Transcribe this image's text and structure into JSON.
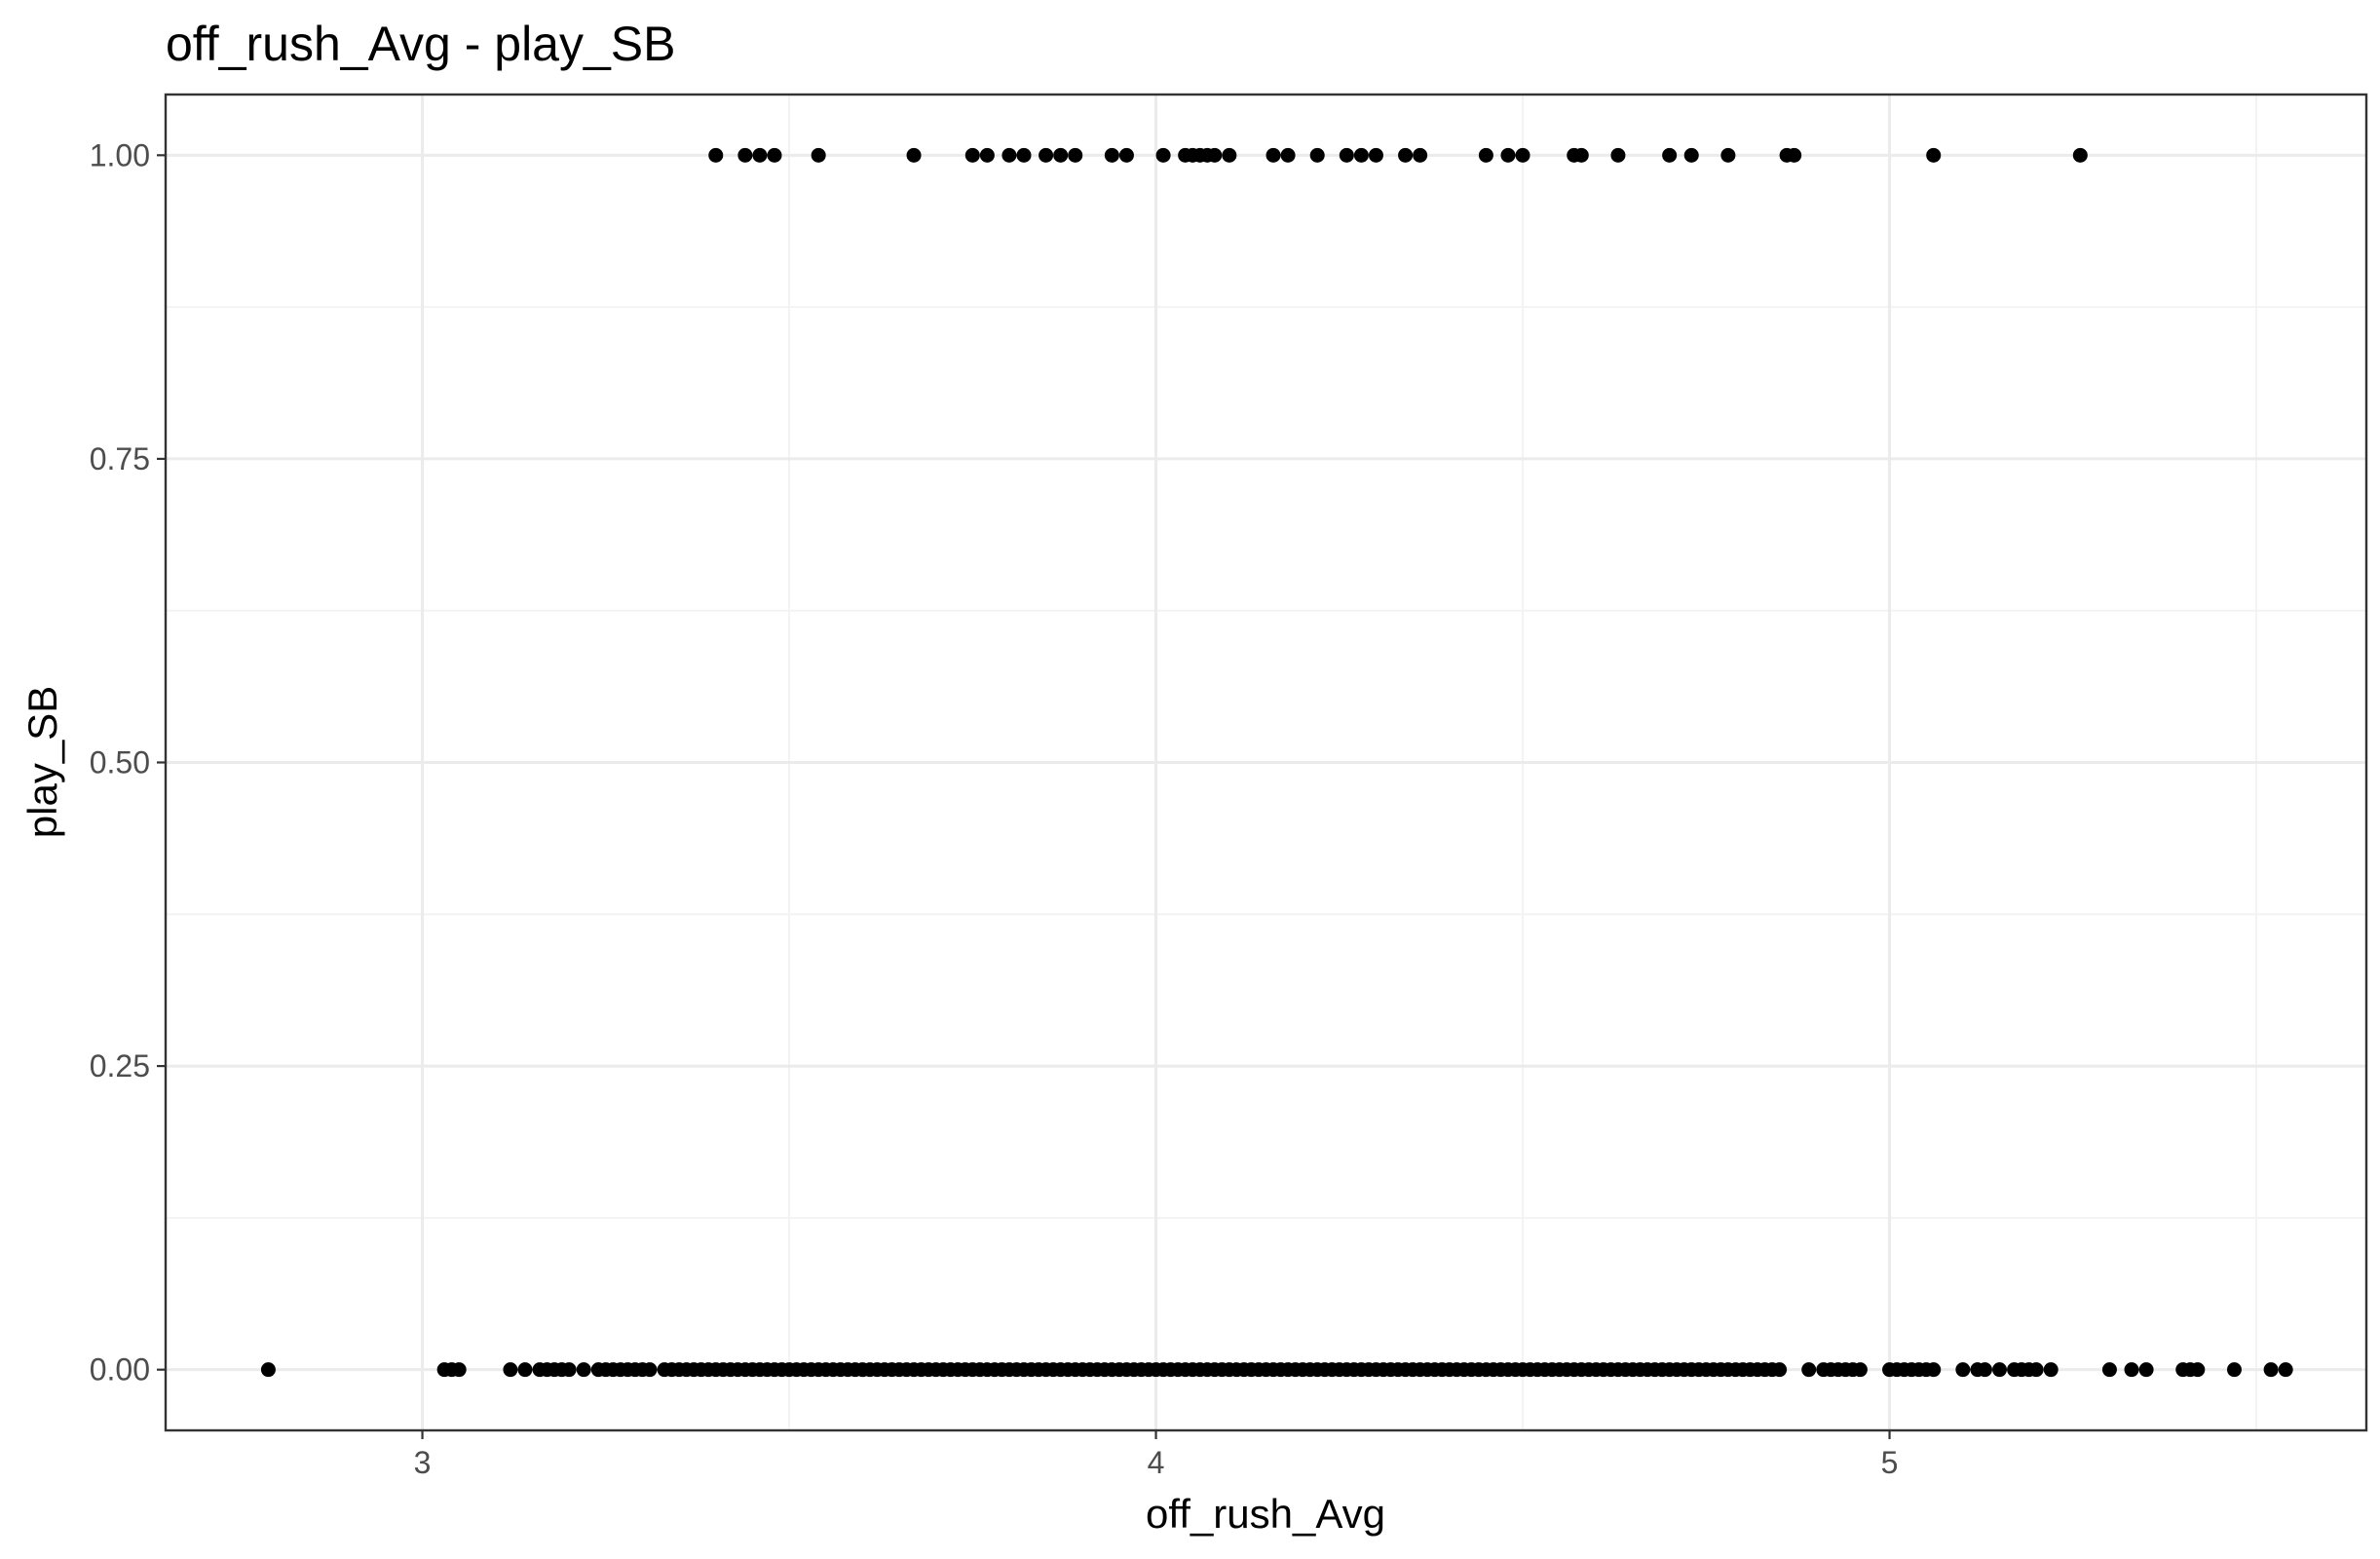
{
  "chart_data": {
    "type": "scatter",
    "title": "off_rush_Avg - play_SB",
    "xlabel": "off_rush_Avg",
    "ylabel": "play_SB",
    "xlim": [
      2.65,
      5.65
    ],
    "ylim": [
      -0.05,
      1.05
    ],
    "xticks": [
      3,
      4,
      5
    ],
    "xtick_labels": [
      "3",
      "4",
      "5"
    ],
    "yticks": [
      0,
      0.25,
      0.5,
      0.75,
      1
    ],
    "ytick_labels": [
      "0.00",
      "0.25",
      "0.50",
      "0.75",
      "1.00"
    ],
    "grid": true,
    "point_color": "#000000",
    "series": [
      {
        "y": 1,
        "x": [
          3.4,
          3.44,
          3.46,
          3.48,
          3.54,
          3.67,
          3.75,
          3.77,
          3.8,
          3.82,
          3.85,
          3.87,
          3.89,
          3.94,
          3.96,
          4.01,
          4.04,
          4.05,
          4.06,
          4.07,
          4.08,
          4.1,
          4.16,
          4.18,
          4.22,
          4.26,
          4.28,
          4.3,
          4.34,
          4.36,
          4.45,
          4.48,
          4.5,
          4.57,
          4.58,
          4.63,
          4.7,
          4.73,
          4.78,
          4.86,
          4.87,
          5.06,
          5.26
        ]
      },
      {
        "y": 0,
        "x": [
          2.79,
          3.03,
          3.04,
          3.05,
          3.12,
          3.14,
          3.16,
          3.17,
          3.18,
          3.19,
          3.2,
          3.22,
          3.24,
          3.25,
          3.26,
          3.27,
          3.28,
          3.29,
          3.3,
          3.31,
          3.33,
          3.34,
          3.35,
          3.36,
          3.37,
          3.38,
          3.39,
          3.4,
          3.41,
          3.42,
          3.43,
          3.44,
          3.45,
          3.46,
          3.47,
          3.48,
          3.49,
          3.5,
          3.51,
          3.52,
          3.53,
          3.54,
          3.55,
          3.56,
          3.57,
          3.58,
          3.59,
          3.6,
          3.61,
          3.62,
          3.63,
          3.64,
          3.65,
          3.66,
          3.67,
          3.68,
          3.69,
          3.7,
          3.71,
          3.72,
          3.73,
          3.74,
          3.75,
          3.76,
          3.77,
          3.78,
          3.79,
          3.8,
          3.81,
          3.82,
          3.83,
          3.84,
          3.85,
          3.86,
          3.87,
          3.88,
          3.89,
          3.9,
          3.91,
          3.92,
          3.93,
          3.94,
          3.95,
          3.96,
          3.97,
          3.98,
          3.99,
          4.0,
          4.01,
          4.02,
          4.03,
          4.04,
          4.05,
          4.06,
          4.07,
          4.08,
          4.09,
          4.1,
          4.11,
          4.12,
          4.13,
          4.14,
          4.15,
          4.16,
          4.17,
          4.18,
          4.19,
          4.2,
          4.21,
          4.22,
          4.23,
          4.24,
          4.25,
          4.26,
          4.27,
          4.28,
          4.29,
          4.3,
          4.31,
          4.32,
          4.33,
          4.34,
          4.35,
          4.36,
          4.37,
          4.38,
          4.39,
          4.4,
          4.41,
          4.42,
          4.43,
          4.44,
          4.45,
          4.46,
          4.47,
          4.48,
          4.49,
          4.5,
          4.51,
          4.52,
          4.53,
          4.54,
          4.55,
          4.56,
          4.57,
          4.58,
          4.59,
          4.6,
          4.61,
          4.62,
          4.63,
          4.64,
          4.65,
          4.66,
          4.67,
          4.68,
          4.69,
          4.7,
          4.71,
          4.72,
          4.73,
          4.74,
          4.75,
          4.76,
          4.77,
          4.78,
          4.79,
          4.8,
          4.81,
          4.82,
          4.83,
          4.84,
          4.85,
          4.89,
          4.91,
          4.92,
          4.93,
          4.94,
          4.95,
          4.96,
          5.0,
          5.01,
          5.02,
          5.03,
          5.04,
          5.05,
          5.06,
          5.1,
          5.12,
          5.13,
          5.15,
          5.17,
          5.18,
          5.19,
          5.2,
          5.22,
          5.3,
          5.33,
          5.35,
          5.4,
          5.41,
          5.42,
          5.47,
          5.52,
          5.54
        ]
      }
    ]
  }
}
